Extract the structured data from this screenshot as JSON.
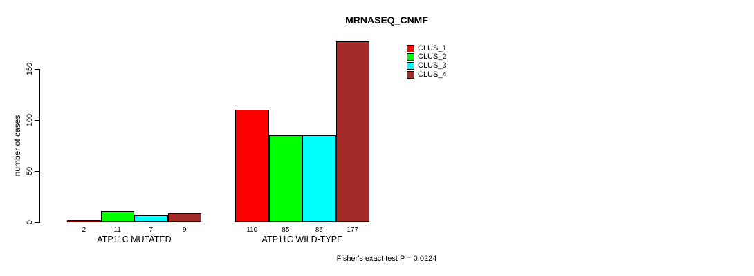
{
  "chart_data": {
    "type": "bar",
    "title": "MRNASEQ_CNMF",
    "ylabel": "number of cases",
    "xlabel": "",
    "categories": [
      "ATP11C MUTATED",
      "ATP11C WILD-TYPE"
    ],
    "series": [
      {
        "name": "CLUS_1",
        "color": "#ff0000",
        "values": [
          2,
          110
        ]
      },
      {
        "name": "CLUS_2",
        "color": "#00ff00",
        "values": [
          11,
          85
        ]
      },
      {
        "name": "CLUS_3",
        "color": "#00ffff",
        "values": [
          7,
          85
        ]
      },
      {
        "name": "CLUS_4",
        "color": "#a52a2a",
        "values": [
          9,
          177
        ]
      }
    ],
    "yticks": [
      0,
      50,
      100,
      150
    ],
    "ylim": [
      0,
      177
    ],
    "grid": false,
    "bar_value_labels_shown": true,
    "legend_position": "top-right",
    "annotation": "Fisher's exact test P = 0.0224"
  },
  "colors": {
    "background": "#ffffff",
    "axis": "#000000",
    "text": "#000000",
    "bar_border": "#000000"
  }
}
